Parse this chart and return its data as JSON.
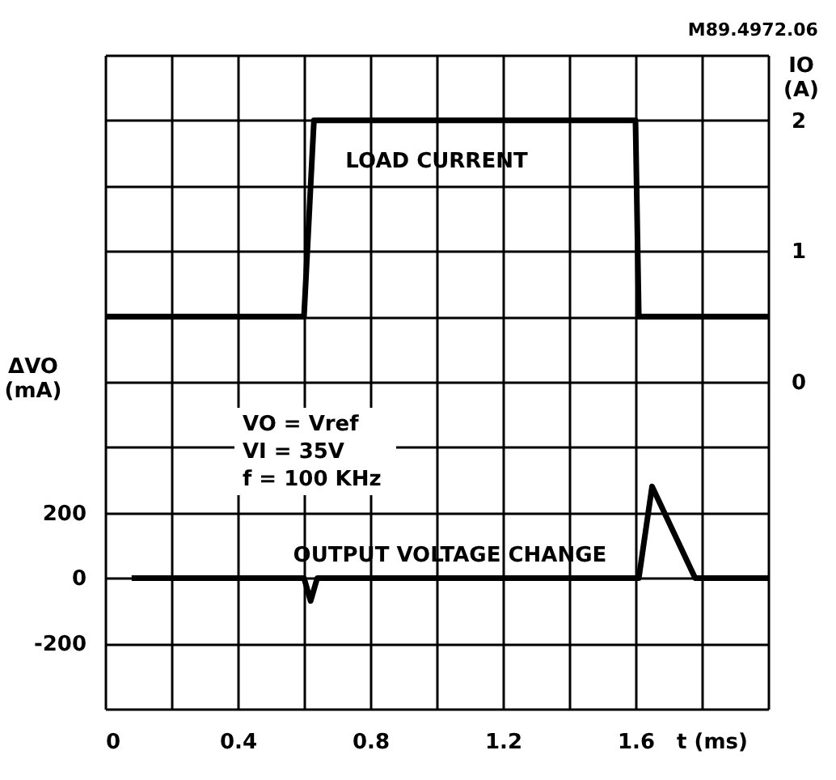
{
  "chart_data": {
    "type": "line",
    "title": "M89.4972.06",
    "xlabel": "t (ms)",
    "ylabel": "ΔVO (mA)",
    "y2label": "IO (A)",
    "annotations": [
      "VO = Vref",
      "VI = 35V",
      "f = 100 KHz"
    ],
    "series": [
      {
        "name": "OUTPUT VOLTAGE CHANGE",
        "color": "#000000",
        "x": [
          0.08,
          0.6,
          0.62,
          0.64,
          1.61,
          1.65,
          1.78,
          2.0
        ],
        "values": [
          0,
          0,
          -70,
          0,
          0,
          280,
          0,
          0
        ]
      },
      {
        "name": "LOAD CURRENT",
        "color": "#000000",
        "axis": "y2",
        "x": [
          0,
          0.6,
          0.63,
          1.6,
          1.61,
          2.0
        ],
        "values": [
          0.5,
          0.5,
          2,
          2,
          0.5,
          0.5
        ]
      }
    ],
    "xlim": [
      0,
      2.0
    ],
    "xticks": [
      0,
      {
        "value": 0.2,
        "label": null
      },
      0.4,
      {
        "value": 0.6,
        "label": null
      },
      0.8,
      {
        "value": 1.0,
        "label": null
      },
      1.2,
      {
        "value": 1.4,
        "label": null
      },
      1.6,
      {
        "value": 1.8,
        "label": null
      },
      {
        "value": 2.0,
        "label": null
      }
    ],
    "ylim": [
      -400,
      1600
    ],
    "yticks": [
      {
        "value": -400,
        "label": null
      },
      -200,
      0,
      200,
      {
        "value": 400,
        "label": null
      },
      {
        "value": 600,
        "label": null
      },
      {
        "value": 800,
        "label": null
      },
      {
        "value": 1000,
        "label": null
      },
      {
        "value": 1200,
        "label": null
      },
      {
        "value": 1400,
        "label": null
      },
      {
        "value": 1600,
        "label": null
      }
    ],
    "y2lim": [
      -2.5,
      2.5
    ],
    "y2ticks": [
      0,
      1,
      2
    ],
    "grid": true,
    "line_style": "solid",
    "marker": "none"
  }
}
